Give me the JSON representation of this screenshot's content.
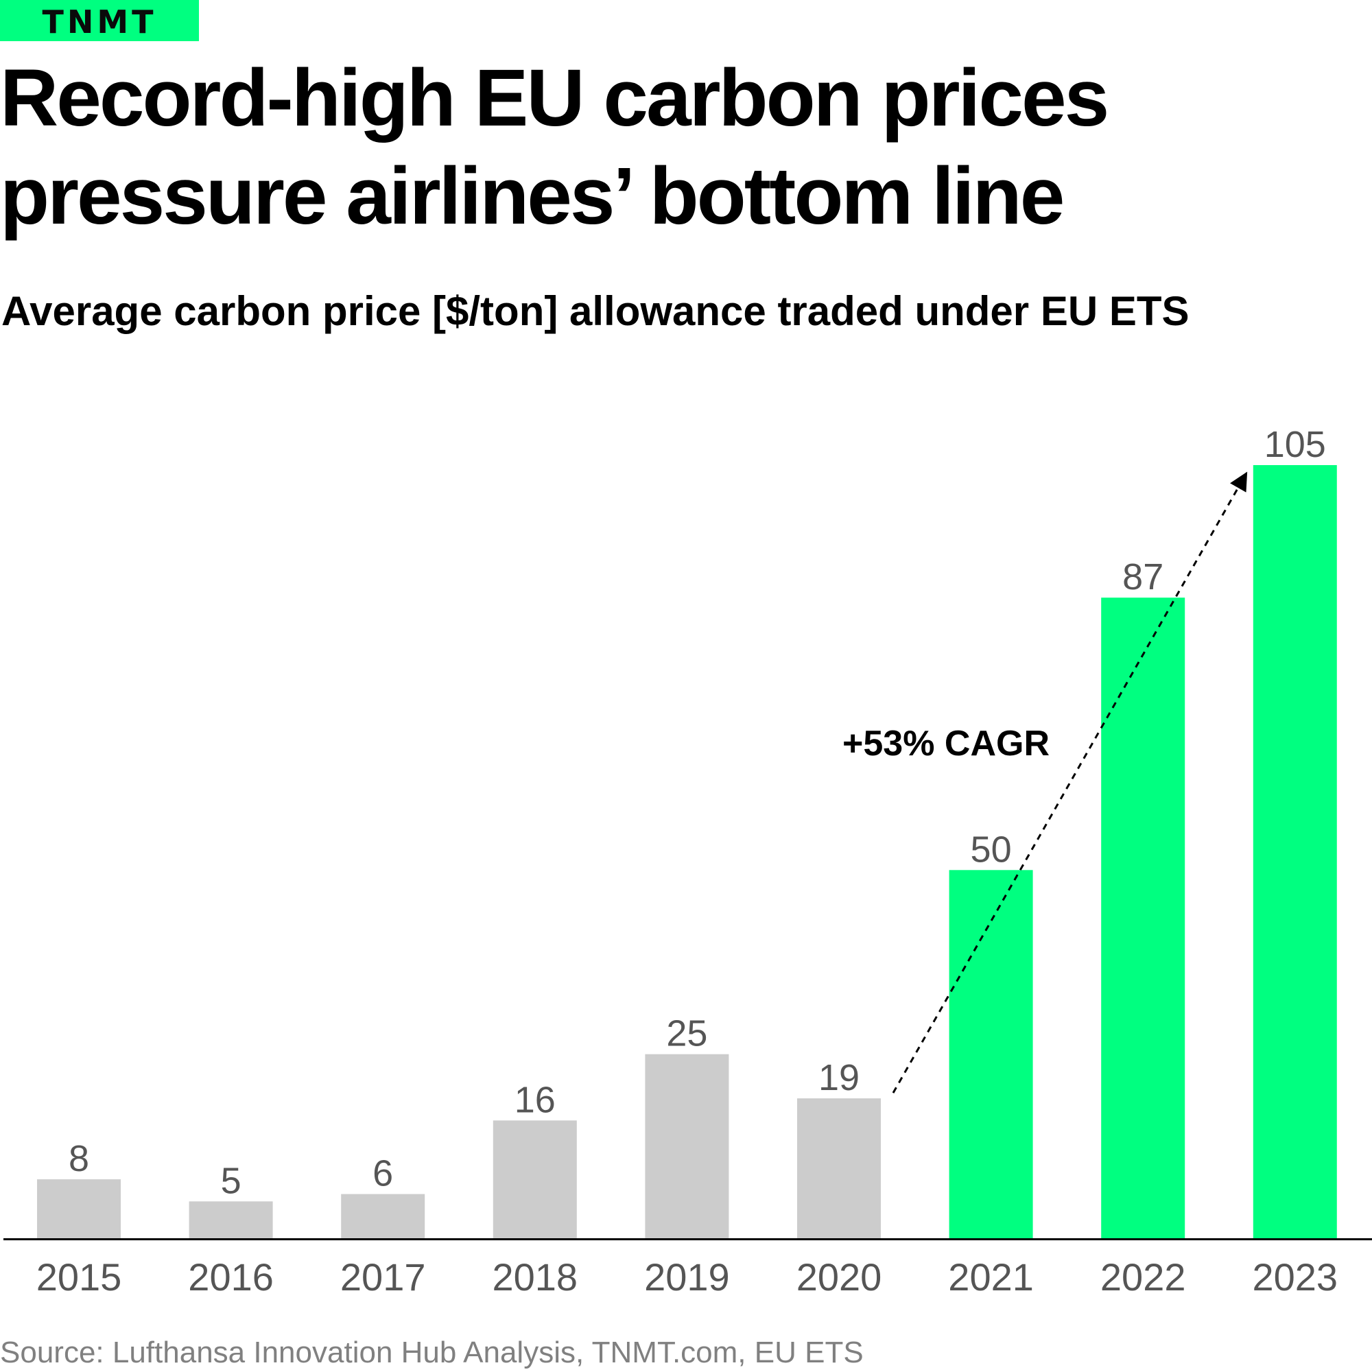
{
  "brand": {
    "logo_text": "TNMT"
  },
  "title": "Record-high EU carbon prices pressure airlines’ bottom line",
  "subtitle": "Average carbon price [$/ton] allowance traded under EU ETS",
  "source": "Source: Lufthansa Innovation Hub Analysis, TNMT.com, EU ETS",
  "colors": {
    "brand_accent": "#00ff80",
    "bar_past": "#cccccc",
    "bar_highlight": "#00ff80",
    "label_gray": "#555555",
    "source_gray": "#808080"
  },
  "chart_data": {
    "type": "bar",
    "categories": [
      "2015",
      "2016",
      "2017",
      "2018",
      "2019",
      "2020",
      "2021",
      "2022",
      "2023"
    ],
    "values": [
      8,
      5,
      6,
      16,
      25,
      19,
      50,
      87,
      105
    ],
    "highlighted": [
      "2021",
      "2022",
      "2023"
    ],
    "title": "Average carbon price [$/ton] allowance traded under EU ETS",
    "xlabel": "",
    "ylabel": "",
    "ylim": [
      0,
      105
    ],
    "grid": false,
    "legend": "none",
    "annotation": {
      "text": "+53% CAGR",
      "from": "2020",
      "to": "2023",
      "style": "dashed-arrow"
    }
  }
}
